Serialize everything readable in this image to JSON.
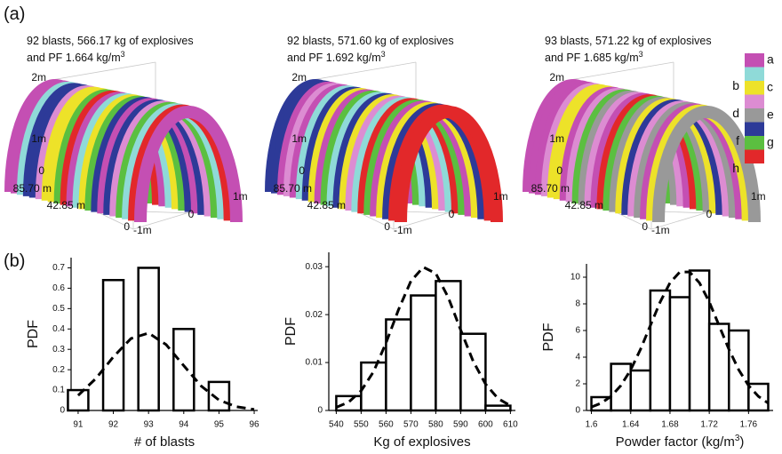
{
  "panel_labels": [
    "(a)",
    "(b)"
  ],
  "legend": [
    {
      "label": "a",
      "color": "#c44fb3"
    },
    {
      "label": "b",
      "color": "#8fdad8"
    },
    {
      "label": "c",
      "color": "#ede229"
    },
    {
      "label": "d",
      "color": "#dc8cd2"
    },
    {
      "label": "e",
      "color": "#999999"
    },
    {
      "label": "f",
      "color": "#2d3a98"
    },
    {
      "label": "g",
      "color": "#5bbf40"
    },
    {
      "label": "h",
      "color": "#e2282a"
    }
  ],
  "tunnels": [
    {
      "title": [
        "92 blasts, 566.17 kg of explosives",
        "and PF 1.664 kg/m"
      ],
      "title_sup": "3",
      "axis_labels": [
        "2m",
        "1m",
        "0",
        "85.70 m",
        "42.85 m",
        "0",
        "-1m",
        "0",
        "1m"
      ]
    },
    {
      "title": [
        "92 blasts, 571.60 kg of explosives",
        "and PF 1.692 kg/m"
      ],
      "title_sup": "3",
      "axis_labels": [
        "2m",
        "1m",
        "0",
        "85.70 m",
        "42.85 m",
        "0",
        "-1m",
        "0",
        "1m"
      ]
    },
    {
      "title": [
        "93 blasts, 571.22 kg of explosives",
        "and PF 1.685 kg/m"
      ],
      "title_sup": "3",
      "axis_labels": [
        "2m",
        "1m",
        "0",
        "85.70 m",
        "42.85 m",
        "0",
        "-1m",
        "0",
        "1m"
      ]
    }
  ],
  "chart_data": [
    {
      "type": "bar",
      "x": [
        91,
        92,
        93,
        94,
        95
      ],
      "values": [
        0.1,
        0.64,
        0.7,
        0.4,
        0.14
      ],
      "fit": {
        "x": [
          91,
          91.5,
          92,
          92.5,
          93,
          93.5,
          94,
          94.5,
          95,
          95.5,
          96
        ],
        "values": [
          0.074,
          0.156,
          0.263,
          0.353,
          0.38,
          0.323,
          0.22,
          0.119,
          0.051,
          0.018,
          0.005
        ]
      },
      "xlim": [
        90.8,
        96.1
      ],
      "ylim": [
        0,
        0.75
      ],
      "xticks": [
        91,
        92,
        93,
        94,
        95,
        96
      ],
      "yticks": [
        0,
        0.1,
        0.2,
        0.3,
        0.4,
        0.5,
        0.6,
        0.7
      ],
      "xlabel": "# of blasts",
      "ylabel": "PDF",
      "color": "#000000"
    },
    {
      "type": "histogram",
      "bins": [
        540,
        550,
        560,
        570,
        580,
        590,
        600,
        610
      ],
      "values": [
        0.003,
        0.01,
        0.019,
        0.024,
        0.027,
        0.016,
        0.001
      ],
      "fit": {
        "x": [
          540,
          545,
          550,
          555,
          560,
          565,
          570,
          575,
          580,
          585,
          590,
          595,
          600,
          605,
          610
        ],
        "values": [
          0.00065,
          0.00175,
          0.0041,
          0.0081,
          0.0141,
          0.021,
          0.027,
          0.0299,
          0.0286,
          0.0236,
          0.0168,
          0.0103,
          0.0055,
          0.0025,
          0.001
        ]
      },
      "xlim": [
        537,
        612
      ],
      "ylim": [
        0,
        0.033
      ],
      "xticks": [
        540,
        550,
        560,
        570,
        580,
        590,
        600,
        610
      ],
      "yticks": [
        0,
        0.01,
        0.02,
        0.03
      ],
      "xlabel": "Kg of explosives",
      "ylabel": "PDF",
      "color": "#000000"
    },
    {
      "type": "histogram",
      "bins": [
        1.6,
        1.62,
        1.64,
        1.66,
        1.68,
        1.7,
        1.72,
        1.74,
        1.76,
        1.78
      ],
      "values": [
        1,
        3.5,
        3,
        9,
        8.5,
        10.5,
        6.5,
        6,
        2
      ],
      "fit": {
        "x": [
          1.6,
          1.61,
          1.62,
          1.63,
          1.64,
          1.65,
          1.66,
          1.67,
          1.68,
          1.69,
          1.7,
          1.71,
          1.72,
          1.73,
          1.74,
          1.75,
          1.76,
          1.77,
          1.78
        ],
        "values": [
          0.26,
          0.55,
          1.06,
          1.87,
          3.05,
          4.59,
          6.37,
          8.14,
          9.58,
          10.39,
          10.39,
          9.58,
          8.14,
          6.37,
          4.59,
          3.05,
          1.87,
          1.06,
          0.55
        ]
      },
      "xlim": [
        1.595,
        1.785
      ],
      "ylim": [
        0,
        11
      ],
      "xticks": [
        1.6,
        1.64,
        1.68,
        1.72,
        1.76
      ],
      "yticks": [
        0,
        2,
        4,
        6,
        8,
        10
      ],
      "xlabel": "Powder factor (kg/m",
      "xlabel_sup": "3",
      "xlabel_tail": ")",
      "ylabel": "PDF",
      "color": "#000000"
    }
  ]
}
